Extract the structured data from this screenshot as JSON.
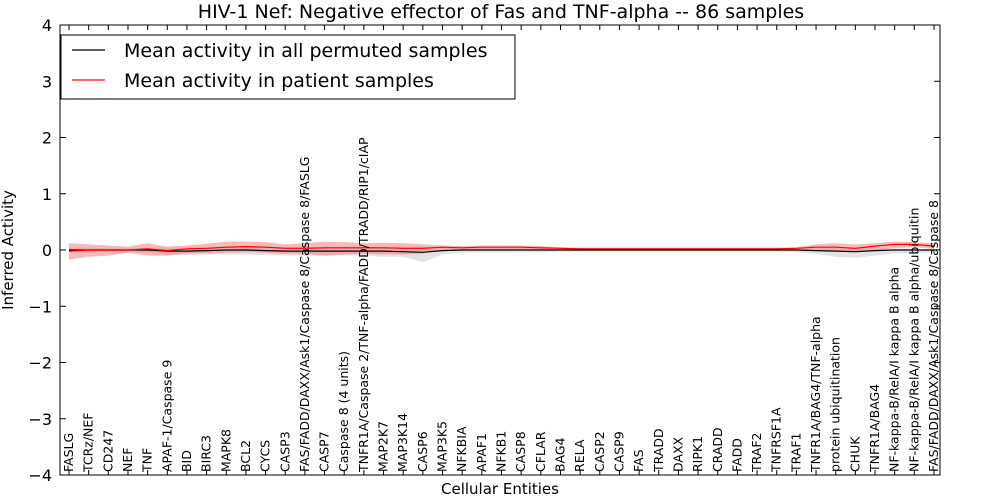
{
  "chart_data": {
    "type": "line",
    "title": "HIV-1 Nef: Negative effector of Fas and TNF-alpha -- 86 samples",
    "xlabel": "Cellular Entities",
    "ylabel": "Inferred Activity",
    "ylim": [
      -4,
      4
    ],
    "yticks": [
      -4,
      -3,
      -2,
      -1,
      0,
      1,
      2,
      3,
      4
    ],
    "ytick_labels": [
      "−4",
      "−3",
      "−2",
      "−1",
      "0",
      "1",
      "2",
      "3",
      "4"
    ],
    "legend_position": "upper-left",
    "categories": [
      "FASLG",
      "TCRz/NEF",
      "CD247",
      "NEF",
      "TNF",
      "APAF-1/Caspase 9",
      "BID",
      "BIRC3",
      "MAPK8",
      "BCL2",
      "CYCS",
      "CASP3",
      "FAS/FADD/DAXX/Ask1/Caspase 8/Caspase 8/FASLG",
      "CASP7",
      "Caspase 8 (4 units)",
      "TNFR1A/Caspase 2/TNF-alpha/FADD/TRADD/RIP1/cIAP",
      "MAP2K7",
      "MAP3K14",
      "CASP6",
      "MAP3K5",
      "NFKBIA",
      "APAF1",
      "NFKB1",
      "CASP8",
      "CFLAR",
      "BAG4",
      "RELA",
      "CASP2",
      "CASP9",
      "FAS",
      "TRADD",
      "DAXX",
      "RIPK1",
      "CRADD",
      "FADD",
      "TRAF2",
      "TNFRSF1A",
      "TRAF1",
      "TNFR1A/BAG4/TNF-alpha",
      "protein ubiquitination",
      "CHUK",
      "TNFR1A/BAG4",
      "NF-kappa-B/RelA/I kappa B alpha",
      "NF-kappa-B/RelA/I kappa B alpha/ubiquitin",
      "FAS/FADD/DAXX/Ask1/Caspase 8/Caspase 8"
    ],
    "series": [
      {
        "name": "Mean activity in all permuted samples",
        "color": "#000000",
        "values": [
          0.0,
          0.0,
          0.0,
          0.0,
          0.0,
          -0.02,
          -0.02,
          -0.01,
          0.0,
          0.0,
          -0.01,
          -0.02,
          -0.02,
          -0.02,
          -0.02,
          -0.02,
          -0.02,
          -0.03,
          -0.04,
          -0.01,
          0.0,
          0.0,
          0.0,
          0.0,
          0.0,
          0.0,
          0.0,
          0.0,
          0.0,
          0.0,
          0.0,
          0.0,
          0.0,
          0.0,
          0.0,
          0.0,
          0.0,
          0.0,
          -0.01,
          -0.02,
          -0.03,
          -0.01,
          0.0,
          0.0,
          0.0
        ],
        "band_upper": [
          0.05,
          0.04,
          0.03,
          0.03,
          0.04,
          0.05,
          0.05,
          0.05,
          0.06,
          0.06,
          0.06,
          0.06,
          0.06,
          0.06,
          0.06,
          0.06,
          0.06,
          0.06,
          0.06,
          0.04,
          0.03,
          0.03,
          0.03,
          0.03,
          0.03,
          0.02,
          0.02,
          0.02,
          0.02,
          0.02,
          0.02,
          0.02,
          0.02,
          0.02,
          0.02,
          0.02,
          0.02,
          0.02,
          0.03,
          0.04,
          0.04,
          0.03,
          0.02,
          0.02,
          0.02
        ],
        "band_lower": [
          -0.05,
          -0.04,
          -0.04,
          -0.04,
          -0.05,
          -0.09,
          -0.09,
          -0.08,
          -0.08,
          -0.08,
          -0.09,
          -0.1,
          -0.1,
          -0.1,
          -0.1,
          -0.1,
          -0.12,
          -0.12,
          -0.22,
          -0.08,
          -0.05,
          -0.04,
          -0.04,
          -0.04,
          -0.04,
          -0.03,
          -0.03,
          -0.03,
          -0.03,
          -0.03,
          -0.03,
          -0.03,
          -0.03,
          -0.03,
          -0.03,
          -0.03,
          -0.03,
          -0.04,
          -0.07,
          -0.12,
          -0.14,
          -0.1,
          -0.06,
          -0.05,
          -0.05
        ]
      },
      {
        "name": "Mean activity in patient samples",
        "color": "#ff0000",
        "values": [
          -0.02,
          0.0,
          0.0,
          0.0,
          0.02,
          -0.01,
          0.02,
          0.03,
          0.05,
          0.06,
          0.05,
          0.03,
          0.03,
          0.04,
          0.04,
          0.04,
          0.04,
          0.03,
          0.03,
          0.05,
          0.04,
          0.05,
          0.05,
          0.05,
          0.04,
          0.03,
          0.02,
          0.02,
          0.02,
          0.02,
          0.02,
          0.02,
          0.02,
          0.02,
          0.02,
          0.02,
          0.02,
          0.03,
          0.05,
          0.05,
          0.03,
          0.07,
          0.1,
          0.1,
          0.07
        ],
        "band_upper": [
          0.12,
          0.1,
          0.08,
          0.06,
          0.12,
          0.06,
          0.08,
          0.11,
          0.15,
          0.15,
          0.14,
          0.1,
          0.12,
          0.15,
          0.14,
          0.12,
          0.13,
          0.12,
          0.1,
          0.08,
          0.07,
          0.08,
          0.08,
          0.08,
          0.07,
          0.05,
          0.04,
          0.04,
          0.04,
          0.04,
          0.04,
          0.04,
          0.04,
          0.04,
          0.04,
          0.04,
          0.04,
          0.05,
          0.1,
          0.12,
          0.1,
          0.12,
          0.15,
          0.14,
          0.12
        ],
        "band_lower": [
          -0.17,
          -0.12,
          -0.1,
          -0.05,
          -0.1,
          -0.1,
          -0.06,
          -0.06,
          -0.05,
          -0.04,
          -0.05,
          -0.07,
          -0.07,
          -0.1,
          -0.08,
          -0.07,
          -0.08,
          -0.08,
          -0.06,
          0.0,
          0.0,
          0.01,
          0.01,
          0.01,
          0.0,
          0.0,
          -0.01,
          -0.01,
          -0.01,
          -0.01,
          -0.01,
          -0.01,
          -0.01,
          -0.01,
          -0.01,
          -0.01,
          -0.01,
          0.0,
          -0.02,
          -0.02,
          -0.04,
          0.0,
          0.03,
          0.05,
          0.02
        ]
      }
    ]
  }
}
